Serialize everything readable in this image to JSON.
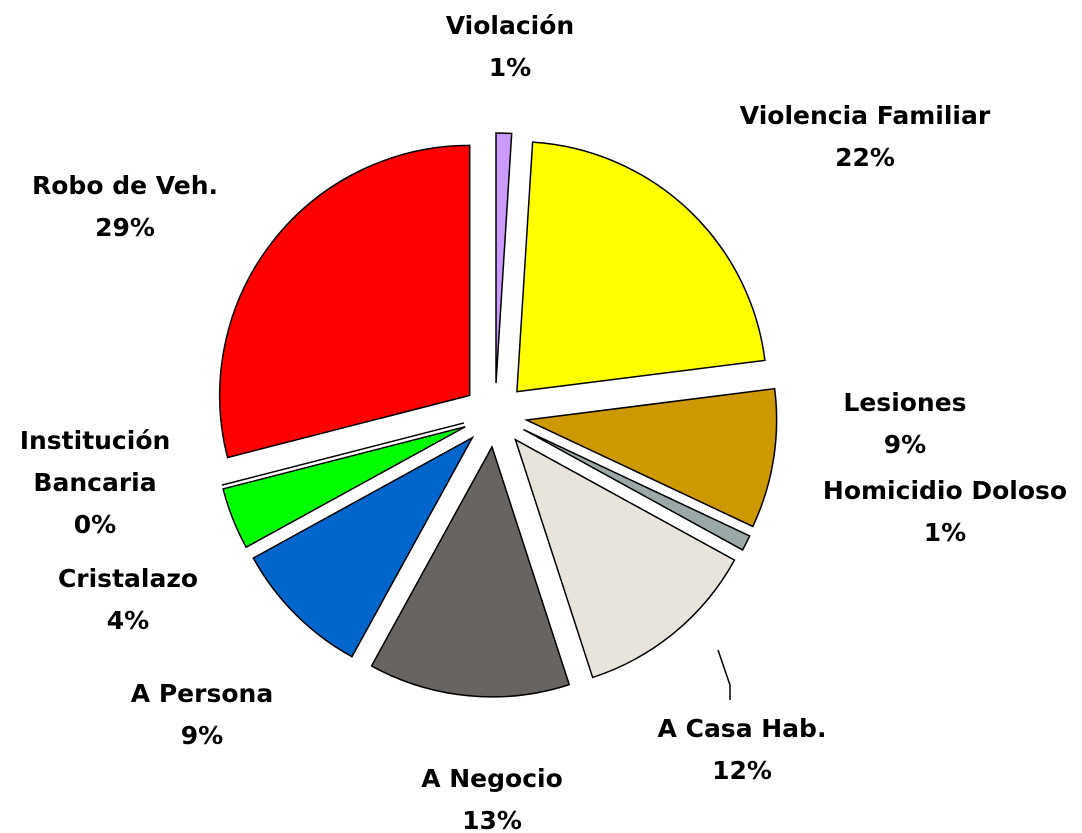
{
  "chart_data": {
    "type": "pie",
    "categories": [
      "Violación",
      "Violencia Familiar",
      "Lesiones",
      "Homicidio Doloso",
      "A Casa Hab.",
      "A Negocio",
      "A Persona",
      "Cristalazo",
      "Institución Bancaria",
      "Robo de Veh."
    ],
    "values": [
      1,
      22,
      9,
      1,
      12,
      13,
      9,
      4,
      0,
      29
    ],
    "value_labels": [
      "1%",
      "22%",
      "9%",
      "1%",
      "12%",
      "13%",
      "9%",
      "4%",
      "0%",
      "29%"
    ],
    "colors": [
      "#cc99ff",
      "#ffff00",
      "#cc9900",
      "#9aa8a8",
      "#e8e4dc",
      "#686462",
      "#0066cc",
      "#00ff00",
      "#660000",
      "#ff0000"
    ]
  }
}
